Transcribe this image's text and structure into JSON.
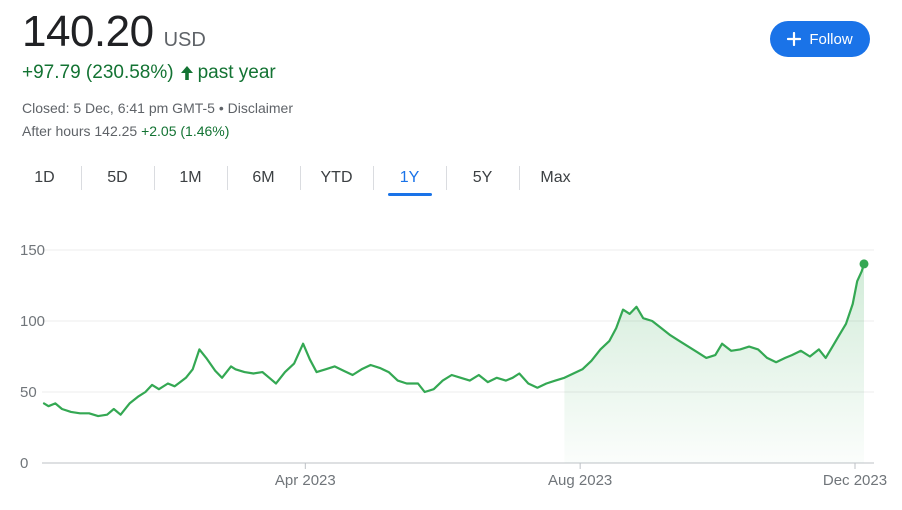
{
  "quote": {
    "price": "140.20",
    "currency": "USD",
    "change_text": "+97.79 (230.58%)",
    "change_period": "past year",
    "closed_text": "Closed: 5 Dec, 6:41 pm GMT-5 • Disclaimer",
    "after_hours_label": "After hours 142.25",
    "after_hours_change": "+2.05 (1.46%)"
  },
  "follow_button": {
    "label": "Follow",
    "icon": "plus-icon"
  },
  "tabs": [
    {
      "label": "1D",
      "active": false
    },
    {
      "label": "5D",
      "active": false
    },
    {
      "label": "1M",
      "active": false
    },
    {
      "label": "6M",
      "active": false
    },
    {
      "label": "YTD",
      "active": false
    },
    {
      "label": "1Y",
      "active": true
    },
    {
      "label": "5Y",
      "active": false
    },
    {
      "label": "Max",
      "active": false
    }
  ],
  "colors": {
    "line": "#34a853",
    "positive_text": "#137333",
    "accent": "#1a73e8"
  },
  "chart_data": {
    "type": "area",
    "ylim": [
      0,
      150
    ],
    "yticks": [
      0,
      50,
      100,
      150
    ],
    "xlim": [
      "2022-12-06",
      "2023-12-05"
    ],
    "xticks": [
      {
        "date": "2023-04-01",
        "label": "Apr 2023"
      },
      {
        "date": "2023-08-01",
        "label": "Aug 2023"
      },
      {
        "date": "2023-12-01",
        "label": "Dec 2023"
      }
    ],
    "grid": true,
    "series": [
      {
        "points": [
          [
            "2022-12-06",
            42
          ],
          [
            "2022-12-08",
            40
          ],
          [
            "2022-12-11",
            42
          ],
          [
            "2022-12-14",
            38
          ],
          [
            "2022-12-18",
            36
          ],
          [
            "2022-12-22",
            35
          ],
          [
            "2022-12-26",
            35
          ],
          [
            "2022-12-30",
            33
          ],
          [
            "2023-01-03",
            34
          ],
          [
            "2023-01-06",
            38
          ],
          [
            "2023-01-09",
            34
          ],
          [
            "2023-01-13",
            42
          ],
          [
            "2023-01-17",
            47
          ],
          [
            "2023-01-20",
            50
          ],
          [
            "2023-01-23",
            55
          ],
          [
            "2023-01-26",
            52
          ],
          [
            "2023-01-30",
            56
          ],
          [
            "2023-02-02",
            54
          ],
          [
            "2023-02-07",
            60
          ],
          [
            "2023-02-10",
            66
          ],
          [
            "2023-02-13",
            80
          ],
          [
            "2023-02-16",
            74
          ],
          [
            "2023-02-20",
            65
          ],
          [
            "2023-02-23",
            60
          ],
          [
            "2023-02-27",
            68
          ],
          [
            "2023-03-01",
            66
          ],
          [
            "2023-03-05",
            64
          ],
          [
            "2023-03-09",
            63
          ],
          [
            "2023-03-13",
            64
          ],
          [
            "2023-03-16",
            60
          ],
          [
            "2023-03-19",
            56
          ],
          [
            "2023-03-23",
            64
          ],
          [
            "2023-03-27",
            70
          ],
          [
            "2023-03-31",
            84
          ],
          [
            "2023-04-03",
            73
          ],
          [
            "2023-04-06",
            64
          ],
          [
            "2023-04-10",
            66
          ],
          [
            "2023-04-14",
            68
          ],
          [
            "2023-04-18",
            65
          ],
          [
            "2023-04-22",
            62
          ],
          [
            "2023-04-26",
            66
          ],
          [
            "2023-04-30",
            69
          ],
          [
            "2023-05-04",
            67
          ],
          [
            "2023-05-08",
            64
          ],
          [
            "2023-05-12",
            58
          ],
          [
            "2023-05-16",
            56
          ],
          [
            "2023-05-21",
            56
          ],
          [
            "2023-05-24",
            50
          ],
          [
            "2023-05-28",
            52
          ],
          [
            "2023-06-01",
            58
          ],
          [
            "2023-06-05",
            62
          ],
          [
            "2023-06-09",
            60
          ],
          [
            "2023-06-13",
            58
          ],
          [
            "2023-06-17",
            62
          ],
          [
            "2023-06-21",
            57
          ],
          [
            "2023-06-25",
            60
          ],
          [
            "2023-06-29",
            58
          ],
          [
            "2023-07-02",
            60
          ],
          [
            "2023-07-05",
            63
          ],
          [
            "2023-07-09",
            56
          ],
          [
            "2023-07-13",
            53
          ],
          [
            "2023-07-17",
            56
          ],
          [
            "2023-07-21",
            58
          ],
          [
            "2023-07-25",
            60
          ],
          [
            "2023-07-29",
            63
          ],
          [
            "2023-08-02",
            66
          ],
          [
            "2023-08-06",
            72
          ],
          [
            "2023-08-10",
            80
          ],
          [
            "2023-08-14",
            86
          ],
          [
            "2023-08-17",
            95
          ],
          [
            "2023-08-20",
            108
          ],
          [
            "2023-08-23",
            105
          ],
          [
            "2023-08-26",
            110
          ],
          [
            "2023-08-29",
            102
          ],
          [
            "2023-09-02",
            100
          ],
          [
            "2023-09-06",
            95
          ],
          [
            "2023-09-10",
            90
          ],
          [
            "2023-09-14",
            86
          ],
          [
            "2023-09-18",
            82
          ],
          [
            "2023-09-22",
            78
          ],
          [
            "2023-09-26",
            74
          ],
          [
            "2023-09-30",
            76
          ],
          [
            "2023-10-03",
            84
          ],
          [
            "2023-10-07",
            79
          ],
          [
            "2023-10-11",
            80
          ],
          [
            "2023-10-15",
            82
          ],
          [
            "2023-10-19",
            80
          ],
          [
            "2023-10-23",
            74
          ],
          [
            "2023-10-27",
            71
          ],
          [
            "2023-10-31",
            74
          ],
          [
            "2023-11-03",
            76
          ],
          [
            "2023-11-07",
            79
          ],
          [
            "2023-11-11",
            75
          ],
          [
            "2023-11-15",
            80
          ],
          [
            "2023-11-18",
            74
          ],
          [
            "2023-11-21",
            82
          ],
          [
            "2023-11-24",
            90
          ],
          [
            "2023-11-27",
            98
          ],
          [
            "2023-11-30",
            112
          ],
          [
            "2023-12-02",
            128
          ],
          [
            "2023-12-04",
            135
          ],
          [
            "2023-12-05",
            140.2
          ]
        ]
      }
    ]
  }
}
